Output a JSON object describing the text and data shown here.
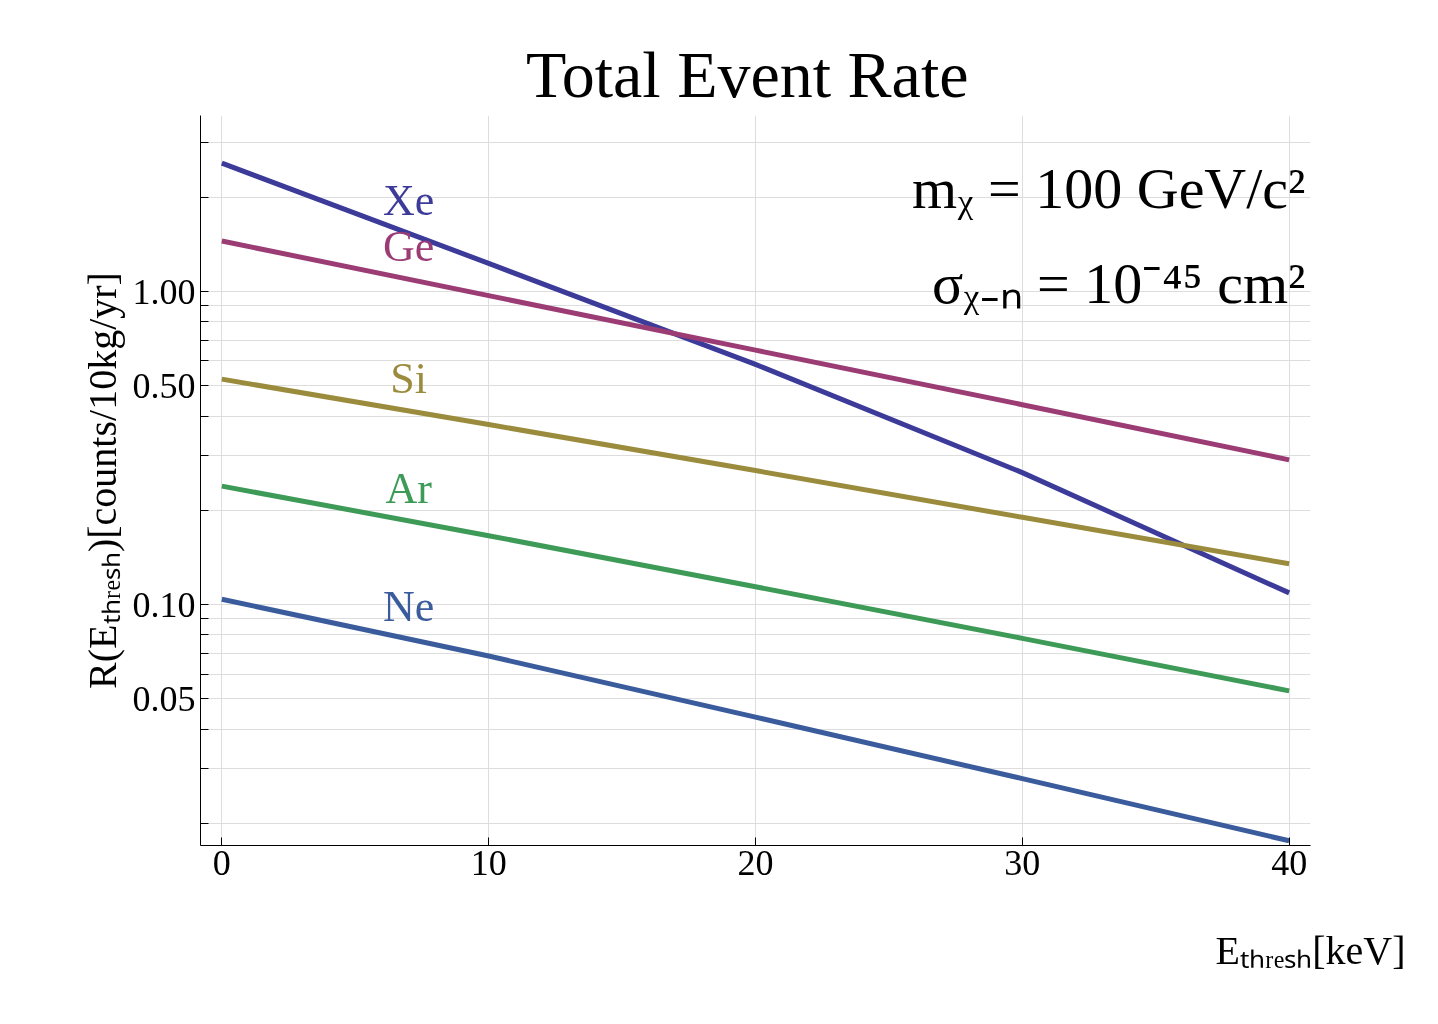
{
  "chart_data": {
    "type": "line",
    "title": "Total  Event Rate",
    "xlabel": "Eₜₕᵣₑₛₕ[keV]",
    "ylabel": "R(Eₜₕᵣₑₛₕ)[counts/10kg/yr]",
    "x": [
      0,
      10,
      20,
      30,
      40
    ],
    "series": [
      {
        "name": "Xe",
        "color": "#3d3b9a",
        "values": [
          2.57,
          1.23,
          0.585,
          0.264,
          0.109
        ]
      },
      {
        "name": "Ge",
        "color": "#9b3d74",
        "values": [
          1.45,
          0.97,
          0.65,
          0.435,
          0.29
        ]
      },
      {
        "name": "Si",
        "color": "#9a8c3c",
        "values": [
          0.525,
          0.376,
          0.268,
          0.19,
          0.135
        ]
      },
      {
        "name": "Ar",
        "color": "#3e9a57",
        "values": [
          0.239,
          0.166,
          0.114,
          0.078,
          0.053
        ]
      },
      {
        "name": "Ne",
        "color": "#3b5c9c",
        "values": [
          0.104,
          0.0685,
          0.0437,
          0.0278,
          0.0176
        ]
      }
    ],
    "log": "y",
    "xlim": [
      -0.8,
      40.8
    ],
    "ylim": [
      0.017,
      3.65
    ],
    "xticks": [
      0,
      10,
      20,
      30,
      40
    ],
    "yticks": [
      {
        "value": 0.02,
        "label": null
      },
      {
        "value": 0.03,
        "label": null
      },
      {
        "value": 0.04,
        "label": null
      },
      {
        "value": 0.05,
        "label": "0.05"
      },
      {
        "value": 0.06,
        "label": null
      },
      {
        "value": 0.07,
        "label": null
      },
      {
        "value": 0.08,
        "label": null
      },
      {
        "value": 0.09,
        "label": null
      },
      {
        "value": 0.1,
        "label": "0.10"
      },
      {
        "value": 0.2,
        "label": null
      },
      {
        "value": 0.3,
        "label": null
      },
      {
        "value": 0.4,
        "label": null
      },
      {
        "value": 0.5,
        "label": "0.50"
      },
      {
        "value": 0.6,
        "label": null
      },
      {
        "value": 0.7,
        "label": null
      },
      {
        "value": 0.8,
        "label": null
      },
      {
        "value": 0.9,
        "label": null
      },
      {
        "value": 1,
        "label": "1.00"
      },
      {
        "value": 2,
        "label": null
      },
      {
        "value": 3,
        "label": null
      }
    ],
    "grid": true,
    "line_style": "solid",
    "annotations": [
      "mᵪ = 100 GeV/c²",
      "σᵪ₋ₙ = 10⁻⁴⁵ cm²"
    ]
  }
}
